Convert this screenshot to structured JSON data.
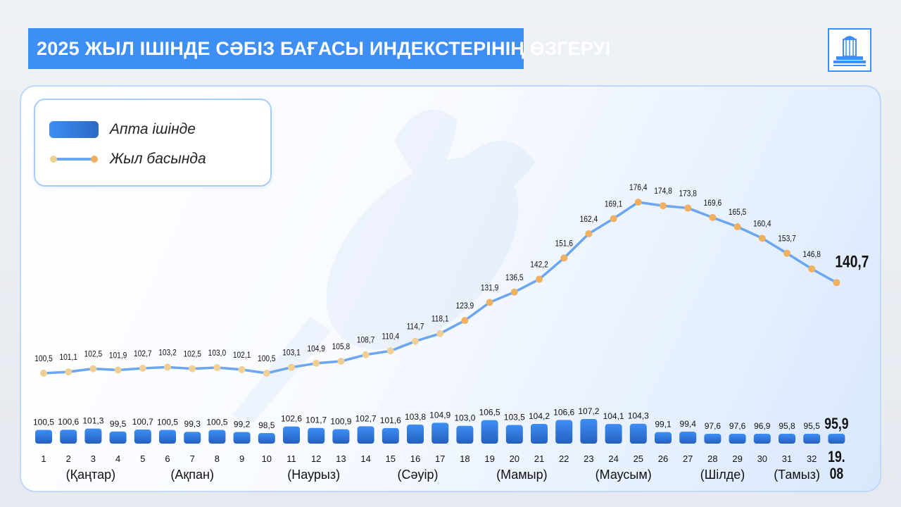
{
  "header": {
    "title": "2025 ЖЫЛ ІШІНДЕ СӘБІЗ БАҒАСЫ ИНДЕКСТЕРІНІҢ ӨЗГЕРУІ"
  },
  "legend": {
    "weekly_label": "Апта ішінде",
    "ytd_label": "Жыл басында"
  },
  "colors": {
    "accent": "#3d8ef5",
    "bar": "#2f72d6",
    "line": "#6aa6f2",
    "marker_early": "#f1cf94",
    "marker_late": "#f0b060"
  },
  "chart_data": {
    "type": "bar",
    "categories": [
      "1",
      "2",
      "3",
      "4",
      "5",
      "6",
      "7",
      "8",
      "9",
      "10",
      "11",
      "12",
      "13",
      "14",
      "15",
      "16",
      "17",
      "18",
      "19",
      "20",
      "21",
      "22",
      "23",
      "24",
      "25",
      "26",
      "27",
      "28",
      "29",
      "30",
      "31",
      "32",
      "19.08"
    ],
    "series": [
      {
        "name": "Апта ішінде",
        "type": "bar",
        "values": [
          100.5,
          100.6,
          101.3,
          99.5,
          100.7,
          100.5,
          99.3,
          100.5,
          99.2,
          98.5,
          102.6,
          101.7,
          100.9,
          102.7,
          101.6,
          103.8,
          104.9,
          103.0,
          106.5,
          103.5,
          104.2,
          106.6,
          107.2,
          104.1,
          104.3,
          99.1,
          99.4,
          97.6,
          97.6,
          96.9,
          95.8,
          95.5,
          95.9
        ],
        "labels": [
          "100,5",
          "100,6",
          "101,3",
          "99,5",
          "100,7",
          "100,5",
          "99,3",
          "100,5",
          "99,2",
          "98,5",
          "102,6",
          "101,7",
          "100,9",
          "102,7",
          "101,6",
          "103,8",
          "104,9",
          "103,0",
          "106,5",
          "103,5",
          "104,2",
          "106,6",
          "107,2",
          "104,1",
          "104,3",
          "99,1",
          "99,4",
          "97,6",
          "97,6",
          "96,9",
          "95,8",
          "95,5",
          "95,9"
        ]
      },
      {
        "name": "Жыл басында",
        "type": "line",
        "values": [
          100.5,
          101.1,
          102.5,
          101.9,
          102.7,
          103.2,
          102.5,
          103.0,
          102.1,
          100.5,
          103.1,
          104.9,
          105.8,
          108.7,
          110.4,
          114.7,
          118.1,
          123.9,
          131.9,
          136.5,
          142.2,
          151.6,
          162.4,
          169.1,
          176.4,
          174.8,
          173.8,
          169.6,
          165.5,
          160.4,
          153.7,
          146.8,
          140.7
        ],
        "labels": [
          "100,5",
          "101,1",
          "102,5",
          "101,9",
          "102,7",
          "103,2",
          "102,5",
          "103,0",
          "102,1",
          "100,5",
          "103,1",
          "104,9",
          "105,8",
          "108,7",
          "110,4",
          "114,7",
          "118,1",
          "123,9",
          "131,9",
          "136,5",
          "142,2",
          "151,6",
          "162,4",
          "169,1",
          "176,4",
          "174,8",
          "173,8",
          "169,6",
          "165,5",
          "160,4",
          "153,7",
          "146,8",
          "140,7"
        ]
      }
    ],
    "month_labels": [
      {
        "text": "(Қаңтар)",
        "week": 2.9
      },
      {
        "text": "(Ақпан)",
        "week": 7
      },
      {
        "text": "(Наурыз)",
        "week": 11.9
      },
      {
        "text": "(Сәуір)",
        "week": 16.1
      },
      {
        "text": "(Мамыр)",
        "week": 20.3
      },
      {
        "text": "(Маусым)",
        "week": 24.4
      },
      {
        "text": "(Шілде)",
        "week": 28.4
      },
      {
        "text": "(Тамыз)",
        "week": 31.4
      }
    ],
    "grid": false,
    "legend_position": "top-left"
  }
}
